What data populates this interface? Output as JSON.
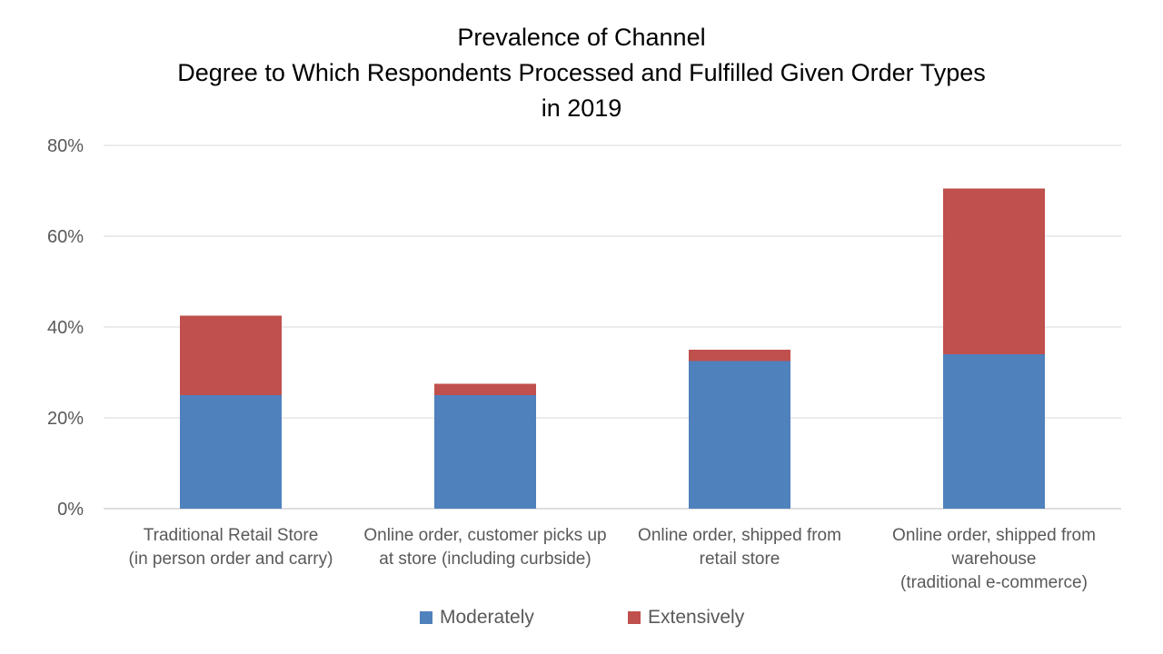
{
  "chart_data": {
    "type": "bar",
    "stacked": true,
    "title_lines": [
      "Prevalence of Channel",
      "Degree to Which Respondents Processed and Fulfilled Given Order Types",
      "in 2019"
    ],
    "categories": [
      [
        "Traditional Retail Store",
        "(in person order and carry)"
      ],
      [
        "Online order, customer picks up",
        "at store (including curbside)"
      ],
      [
        "Online order, shipped from",
        "retail store"
      ],
      [
        "Online order, shipped from",
        "warehouse",
        "(traditional e-commerce)"
      ]
    ],
    "series": [
      {
        "name": "Moderately",
        "color": "#4f81bd",
        "values": [
          25,
          25,
          32.5,
          34
        ]
      },
      {
        "name": "Extensively",
        "color": "#c0504d",
        "values": [
          17.5,
          2.5,
          2.5,
          36.5
        ]
      }
    ],
    "ylim": [
      0,
      80
    ],
    "yticks": [
      0,
      20,
      40,
      60,
      80
    ],
    "ytick_labels": [
      "0%",
      "20%",
      "40%",
      "60%",
      "80%"
    ],
    "grid": true,
    "legend_position": "bottom"
  }
}
